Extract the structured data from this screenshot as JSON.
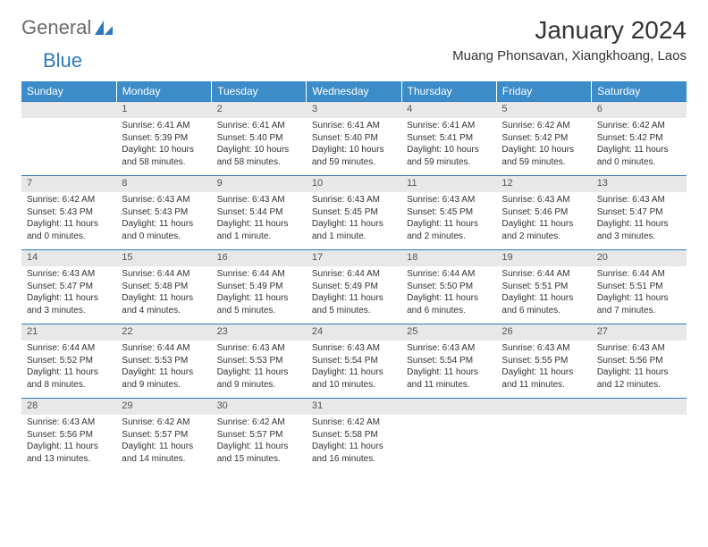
{
  "brand": {
    "part1": "General",
    "part2": "Blue"
  },
  "title": "January 2024",
  "location": "Muang Phonsavan, Xiangkhoang, Laos",
  "colors": {
    "header_bg": "#3c8cc9",
    "header_text": "#ffffff",
    "rule": "#2c79bf",
    "daynum_bg": "#e8e8e8",
    "text": "#333333",
    "logo_gray": "#6b6b6b",
    "logo_blue": "#2c79bf"
  },
  "weekdays": [
    "Sunday",
    "Monday",
    "Tuesday",
    "Wednesday",
    "Thursday",
    "Friday",
    "Saturday"
  ],
  "weeks": [
    [
      null,
      {
        "n": "1",
        "sr": "Sunrise: 6:41 AM",
        "ss": "Sunset: 5:39 PM",
        "dl1": "Daylight: 10 hours",
        "dl2": "and 58 minutes."
      },
      {
        "n": "2",
        "sr": "Sunrise: 6:41 AM",
        "ss": "Sunset: 5:40 PM",
        "dl1": "Daylight: 10 hours",
        "dl2": "and 58 minutes."
      },
      {
        "n": "3",
        "sr": "Sunrise: 6:41 AM",
        "ss": "Sunset: 5:40 PM",
        "dl1": "Daylight: 10 hours",
        "dl2": "and 59 minutes."
      },
      {
        "n": "4",
        "sr": "Sunrise: 6:41 AM",
        "ss": "Sunset: 5:41 PM",
        "dl1": "Daylight: 10 hours",
        "dl2": "and 59 minutes."
      },
      {
        "n": "5",
        "sr": "Sunrise: 6:42 AM",
        "ss": "Sunset: 5:42 PM",
        "dl1": "Daylight: 10 hours",
        "dl2": "and 59 minutes."
      },
      {
        "n": "6",
        "sr": "Sunrise: 6:42 AM",
        "ss": "Sunset: 5:42 PM",
        "dl1": "Daylight: 11 hours",
        "dl2": "and 0 minutes."
      }
    ],
    [
      {
        "n": "7",
        "sr": "Sunrise: 6:42 AM",
        "ss": "Sunset: 5:43 PM",
        "dl1": "Daylight: 11 hours",
        "dl2": "and 0 minutes."
      },
      {
        "n": "8",
        "sr": "Sunrise: 6:43 AM",
        "ss": "Sunset: 5:43 PM",
        "dl1": "Daylight: 11 hours",
        "dl2": "and 0 minutes."
      },
      {
        "n": "9",
        "sr": "Sunrise: 6:43 AM",
        "ss": "Sunset: 5:44 PM",
        "dl1": "Daylight: 11 hours",
        "dl2": "and 1 minute."
      },
      {
        "n": "10",
        "sr": "Sunrise: 6:43 AM",
        "ss": "Sunset: 5:45 PM",
        "dl1": "Daylight: 11 hours",
        "dl2": "and 1 minute."
      },
      {
        "n": "11",
        "sr": "Sunrise: 6:43 AM",
        "ss": "Sunset: 5:45 PM",
        "dl1": "Daylight: 11 hours",
        "dl2": "and 2 minutes."
      },
      {
        "n": "12",
        "sr": "Sunrise: 6:43 AM",
        "ss": "Sunset: 5:46 PM",
        "dl1": "Daylight: 11 hours",
        "dl2": "and 2 minutes."
      },
      {
        "n": "13",
        "sr": "Sunrise: 6:43 AM",
        "ss": "Sunset: 5:47 PM",
        "dl1": "Daylight: 11 hours",
        "dl2": "and 3 minutes."
      }
    ],
    [
      {
        "n": "14",
        "sr": "Sunrise: 6:43 AM",
        "ss": "Sunset: 5:47 PM",
        "dl1": "Daylight: 11 hours",
        "dl2": "and 3 minutes."
      },
      {
        "n": "15",
        "sr": "Sunrise: 6:44 AM",
        "ss": "Sunset: 5:48 PM",
        "dl1": "Daylight: 11 hours",
        "dl2": "and 4 minutes."
      },
      {
        "n": "16",
        "sr": "Sunrise: 6:44 AM",
        "ss": "Sunset: 5:49 PM",
        "dl1": "Daylight: 11 hours",
        "dl2": "and 5 minutes."
      },
      {
        "n": "17",
        "sr": "Sunrise: 6:44 AM",
        "ss": "Sunset: 5:49 PM",
        "dl1": "Daylight: 11 hours",
        "dl2": "and 5 minutes."
      },
      {
        "n": "18",
        "sr": "Sunrise: 6:44 AM",
        "ss": "Sunset: 5:50 PM",
        "dl1": "Daylight: 11 hours",
        "dl2": "and 6 minutes."
      },
      {
        "n": "19",
        "sr": "Sunrise: 6:44 AM",
        "ss": "Sunset: 5:51 PM",
        "dl1": "Daylight: 11 hours",
        "dl2": "and 6 minutes."
      },
      {
        "n": "20",
        "sr": "Sunrise: 6:44 AM",
        "ss": "Sunset: 5:51 PM",
        "dl1": "Daylight: 11 hours",
        "dl2": "and 7 minutes."
      }
    ],
    [
      {
        "n": "21",
        "sr": "Sunrise: 6:44 AM",
        "ss": "Sunset: 5:52 PM",
        "dl1": "Daylight: 11 hours",
        "dl2": "and 8 minutes."
      },
      {
        "n": "22",
        "sr": "Sunrise: 6:44 AM",
        "ss": "Sunset: 5:53 PM",
        "dl1": "Daylight: 11 hours",
        "dl2": "and 9 minutes."
      },
      {
        "n": "23",
        "sr": "Sunrise: 6:43 AM",
        "ss": "Sunset: 5:53 PM",
        "dl1": "Daylight: 11 hours",
        "dl2": "and 9 minutes."
      },
      {
        "n": "24",
        "sr": "Sunrise: 6:43 AM",
        "ss": "Sunset: 5:54 PM",
        "dl1": "Daylight: 11 hours",
        "dl2": "and 10 minutes."
      },
      {
        "n": "25",
        "sr": "Sunrise: 6:43 AM",
        "ss": "Sunset: 5:54 PM",
        "dl1": "Daylight: 11 hours",
        "dl2": "and 11 minutes."
      },
      {
        "n": "26",
        "sr": "Sunrise: 6:43 AM",
        "ss": "Sunset: 5:55 PM",
        "dl1": "Daylight: 11 hours",
        "dl2": "and 11 minutes."
      },
      {
        "n": "27",
        "sr": "Sunrise: 6:43 AM",
        "ss": "Sunset: 5:56 PM",
        "dl1": "Daylight: 11 hours",
        "dl2": "and 12 minutes."
      }
    ],
    [
      {
        "n": "28",
        "sr": "Sunrise: 6:43 AM",
        "ss": "Sunset: 5:56 PM",
        "dl1": "Daylight: 11 hours",
        "dl2": "and 13 minutes."
      },
      {
        "n": "29",
        "sr": "Sunrise: 6:42 AM",
        "ss": "Sunset: 5:57 PM",
        "dl1": "Daylight: 11 hours",
        "dl2": "and 14 minutes."
      },
      {
        "n": "30",
        "sr": "Sunrise: 6:42 AM",
        "ss": "Sunset: 5:57 PM",
        "dl1": "Daylight: 11 hours",
        "dl2": "and 15 minutes."
      },
      {
        "n": "31",
        "sr": "Sunrise: 6:42 AM",
        "ss": "Sunset: 5:58 PM",
        "dl1": "Daylight: 11 hours",
        "dl2": "and 16 minutes."
      },
      null,
      null,
      null
    ]
  ]
}
